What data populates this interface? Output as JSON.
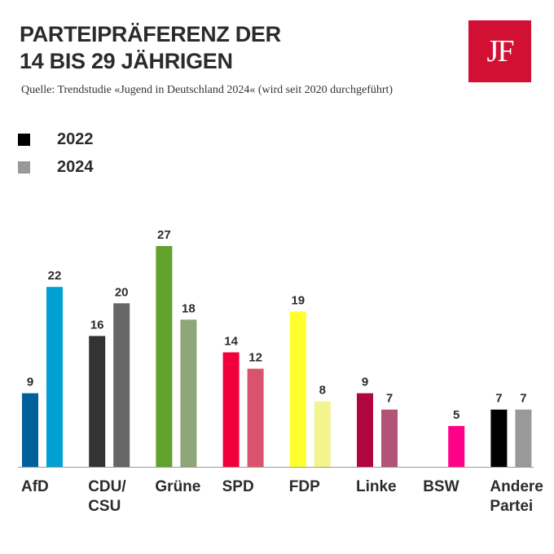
{
  "brand": {
    "logo_text": "JF",
    "logo_color": "#d21034"
  },
  "chart_data": {
    "type": "bar",
    "title": [
      "PARTEIPRÄFERENZ DER",
      "14 BIS 29 JÄHRIGEN"
    ],
    "subtitle": "Quelle: Trendstudie «Jugend in Deutschland 2024« (wird seit 2020 durchgeführt)",
    "xlabel": "",
    "ylabel": "",
    "ylim": [
      0,
      27
    ],
    "legend": [
      {
        "name": "2022",
        "color": "#000000"
      },
      {
        "name": "2024",
        "color": "#999999"
      }
    ],
    "categories": [
      {
        "label": [
          "AfD"
        ],
        "v2022": 9,
        "v2024": 22,
        "c2022": "#00619a",
        "c2024": "#00a0d2"
      },
      {
        "label": [
          "CDU/",
          "CSU"
        ],
        "v2022": 16,
        "v2024": 20,
        "c2022": "#333333",
        "c2024": "#666666"
      },
      {
        "label": [
          "Grüne"
        ],
        "v2022": 27,
        "v2024": 18,
        "c2022": "#61a12d",
        "c2024": "#8ea67a"
      },
      {
        "label": [
          "SPD"
        ],
        "v2022": 14,
        "v2024": 12,
        "c2022": "#f2003c",
        "c2024": "#d9536e"
      },
      {
        "label": [
          "FDP"
        ],
        "v2022": 19,
        "v2024": 8,
        "c2022": "#ffff2e",
        "c2024": "#f4f48f"
      },
      {
        "label": [
          "Linke"
        ],
        "v2022": 9,
        "v2024": 7,
        "c2022": "#b0063e",
        "c2024": "#b25478"
      },
      {
        "label": [
          "BSW"
        ],
        "v2022": null,
        "v2024": 5,
        "c2022": "#cccccc",
        "c2024": "#ff0088"
      },
      {
        "label": [
          "Andere",
          "Partei"
        ],
        "v2022": 7,
        "v2024": 7,
        "c2022": "#000000",
        "c2024": "#999999"
      }
    ]
  }
}
